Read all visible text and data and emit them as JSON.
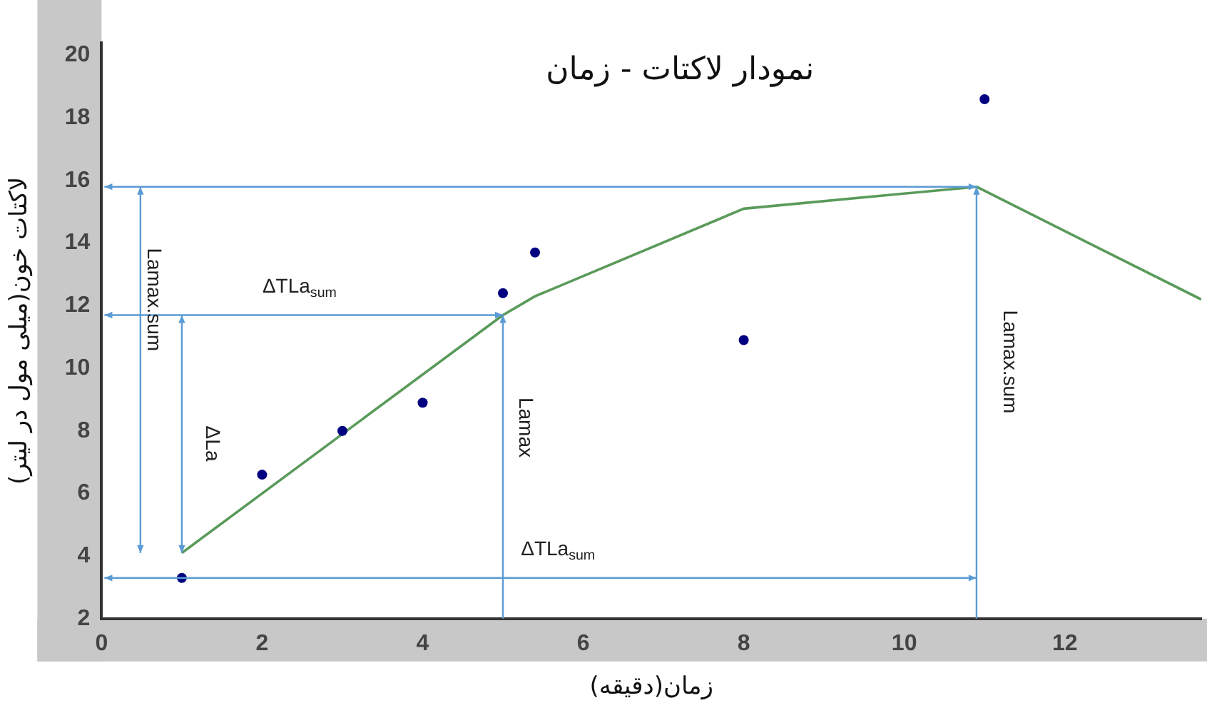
{
  "chart_data": {
    "type": "scatter",
    "title": "نمودار لاکتات - زمان",
    "xlabel": "زمان(دقیقه)",
    "ylabel": "لاکتات خون(میلی مول در لیتر)",
    "xlim": [
      0,
      13.7
    ],
    "ylim": [
      2,
      20.4
    ],
    "xticks": [
      0,
      2,
      4,
      6,
      8,
      10,
      12
    ],
    "yticks": [
      2,
      4,
      6,
      8,
      10,
      12,
      14,
      16,
      18,
      20
    ],
    "grid": false,
    "legend": false,
    "series": [
      {
        "color": "#000080",
        "marker": "circle",
        "x": [
          1,
          2,
          3,
          4,
          5,
          5.4,
          8,
          11
        ],
        "values": [
          3.3,
          6.6,
          8,
          8.9,
          12.4,
          13.7,
          10.9,
          18.6
        ]
      },
      {
        "type": "line",
        "color": "#5a9a5a",
        "marker": "none",
        "line_style": "solid",
        "x": [
          1,
          5,
          5.4,
          8,
          10.9,
          13.7
        ],
        "values": [
          4.1,
          11.7,
          12.3,
          15.1,
          15.8,
          12.2
        ]
      }
    ],
    "annotations": [
      "Lamax.sum",
      "ΔTLa$_{sum}$",
      "ΔLa",
      "Lamax",
      "ΔTLa$_{sum}$",
      "Lamax.sum"
    ]
  }
}
